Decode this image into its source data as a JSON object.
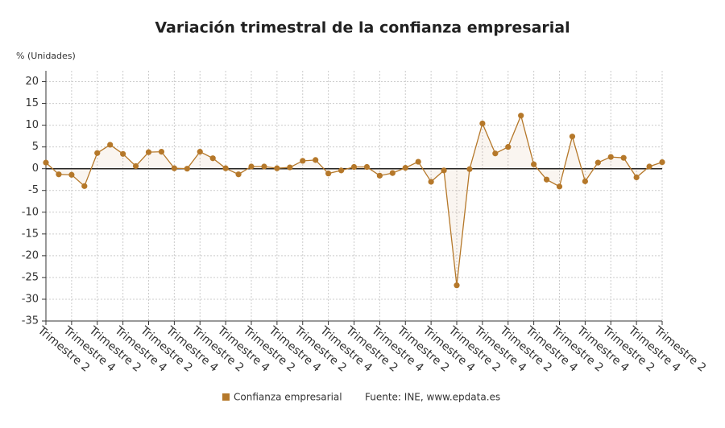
{
  "chart_data": {
    "type": "line",
    "title": "Variación trimestral de la confianza empresarial",
    "y_label": "% (Unidades)",
    "source": "Fuente: INE, www.epdata.es",
    "categories": [
      "Trimestre 2",
      null,
      "Trimestre 4",
      null,
      "Trimestre 2",
      null,
      "Trimestre 4",
      null,
      "Trimestre 2",
      null,
      "Trimestre 4",
      null,
      "Trimestre 2",
      null,
      "Trimestre 4",
      null,
      "Trimestre 2",
      null,
      "Trimestre 4",
      null,
      "Trimestre 2",
      null,
      "Trimestre 4",
      null,
      "Trimestre 2",
      null,
      "Trimestre 4",
      null,
      "Trimestre 2",
      null,
      "Trimestre 4",
      null,
      "Trimestre 2",
      null,
      "Trimestre 4",
      null,
      "Trimestre 2",
      null,
      "Trimestre 4",
      null,
      "Trimestre 2",
      null,
      "Trimestre 4",
      null,
      "Trimestre 2",
      null,
      "Trimestre 4",
      null,
      "Trimestre 2"
    ],
    "series": [
      {
        "name": "Confianza empresarial",
        "color": "#b5782a",
        "values": [
          1.4,
          -1.3,
          -1.4,
          -4,
          3.6,
          5.5,
          3.4,
          0.6,
          3.8,
          3.9,
          0.1,
          0,
          3.9,
          2.4,
          0.1,
          -1.3,
          0.5,
          0.5,
          0.1,
          0.3,
          1.8,
          2,
          -1.1,
          -0.4,
          0.4,
          0.4,
          -1.6,
          -1,
          0.2,
          1.6,
          -3,
          -0.4,
          -26.8,
          -0.1,
          10.4,
          3.5,
          5,
          12.2,
          1,
          -2.5,
          -4.1,
          7.4,
          -2.9,
          1.4,
          2.7,
          2.5,
          -2,
          0.5,
          1.5
        ]
      }
    ],
    "ylim": [
      -35,
      22.5
    ],
    "yticks": [
      -35,
      -30,
      -25,
      -20,
      -15,
      -10,
      -5,
      0,
      5,
      10,
      15,
      20
    ],
    "grid": true
  }
}
